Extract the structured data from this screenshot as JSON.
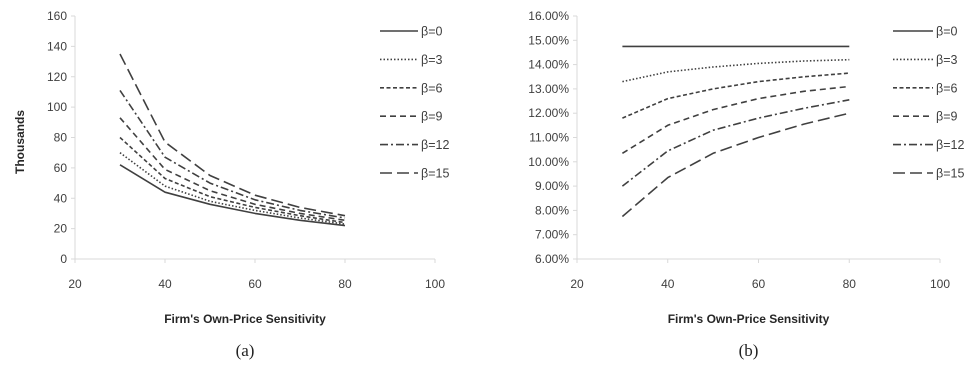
{
  "chart_data": [
    {
      "type": "line",
      "panel_label": "(a)",
      "xlabel": "Firm's Own-Price Sensitivity",
      "ylabel": "Thousands",
      "xlim": [
        20,
        100
      ],
      "ylim": [
        0,
        160
      ],
      "x_ticks": [
        "20",
        "40",
        "60",
        "80",
        "100"
      ],
      "y_ticks": [
        "0",
        "20",
        "40",
        "60",
        "80",
        "100",
        "120",
        "140",
        "160"
      ],
      "legend_position": "right",
      "grid": false,
      "x": [
        30,
        40,
        50,
        60,
        70,
        80
      ],
      "series": [
        {
          "name": "β=0",
          "dash": "solid",
          "values": [
            62,
            44,
            36,
            30,
            25.5,
            22
          ]
        },
        {
          "name": "β=3",
          "dash": "dotted",
          "values": [
            70,
            48,
            38,
            32,
            27,
            23
          ]
        },
        {
          "name": "β=6",
          "dash": "short-dash",
          "values": [
            80,
            53,
            41,
            34,
            28.5,
            24
          ]
        },
        {
          "name": "β=9",
          "dash": "dash",
          "values": [
            93,
            59,
            45,
            36,
            30,
            25.5
          ]
        },
        {
          "name": "β=12",
          "dash": "dash-dot",
          "values": [
            111,
            67,
            50,
            39,
            32,
            27
          ]
        },
        {
          "name": "β=15",
          "dash": "long-dash",
          "values": [
            135,
            77,
            55,
            42,
            34,
            28.5
          ]
        }
      ]
    },
    {
      "type": "line",
      "panel_label": "(b)",
      "xlabel": "Firm's Own-Price Sensitivity",
      "ylabel": "",
      "xlim": [
        20,
        100
      ],
      "ylim": [
        6,
        16
      ],
      "x_ticks": [
        "20",
        "40",
        "60",
        "80",
        "100"
      ],
      "y_ticks": [
        "6.00%",
        "7.00%",
        "8.00%",
        "9.00%",
        "10.00%",
        "11.00%",
        "12.00%",
        "13.00%",
        "14.00%",
        "15.00%",
        "16.00%"
      ],
      "legend_position": "right",
      "grid": false,
      "x": [
        30,
        40,
        50,
        60,
        70,
        80
      ],
      "series": [
        {
          "name": "β=0",
          "dash": "solid",
          "values": [
            14.75,
            14.75,
            14.75,
            14.75,
            14.75,
            14.75
          ]
        },
        {
          "name": "β=3",
          "dash": "dotted",
          "values": [
            13.3,
            13.7,
            13.9,
            14.05,
            14.15,
            14.2
          ]
        },
        {
          "name": "β=6",
          "dash": "short-dash",
          "values": [
            11.8,
            12.6,
            13.0,
            13.3,
            13.5,
            13.65
          ]
        },
        {
          "name": "β=9",
          "dash": "dash",
          "values": [
            10.35,
            11.5,
            12.15,
            12.6,
            12.9,
            13.1
          ]
        },
        {
          "name": "β=12",
          "dash": "dash-dot",
          "values": [
            9.0,
            10.45,
            11.3,
            11.8,
            12.2,
            12.55
          ]
        },
        {
          "name": "β=15",
          "dash": "long-dash",
          "values": [
            7.75,
            9.35,
            10.35,
            11.0,
            11.55,
            12.0
          ]
        }
      ]
    }
  ]
}
